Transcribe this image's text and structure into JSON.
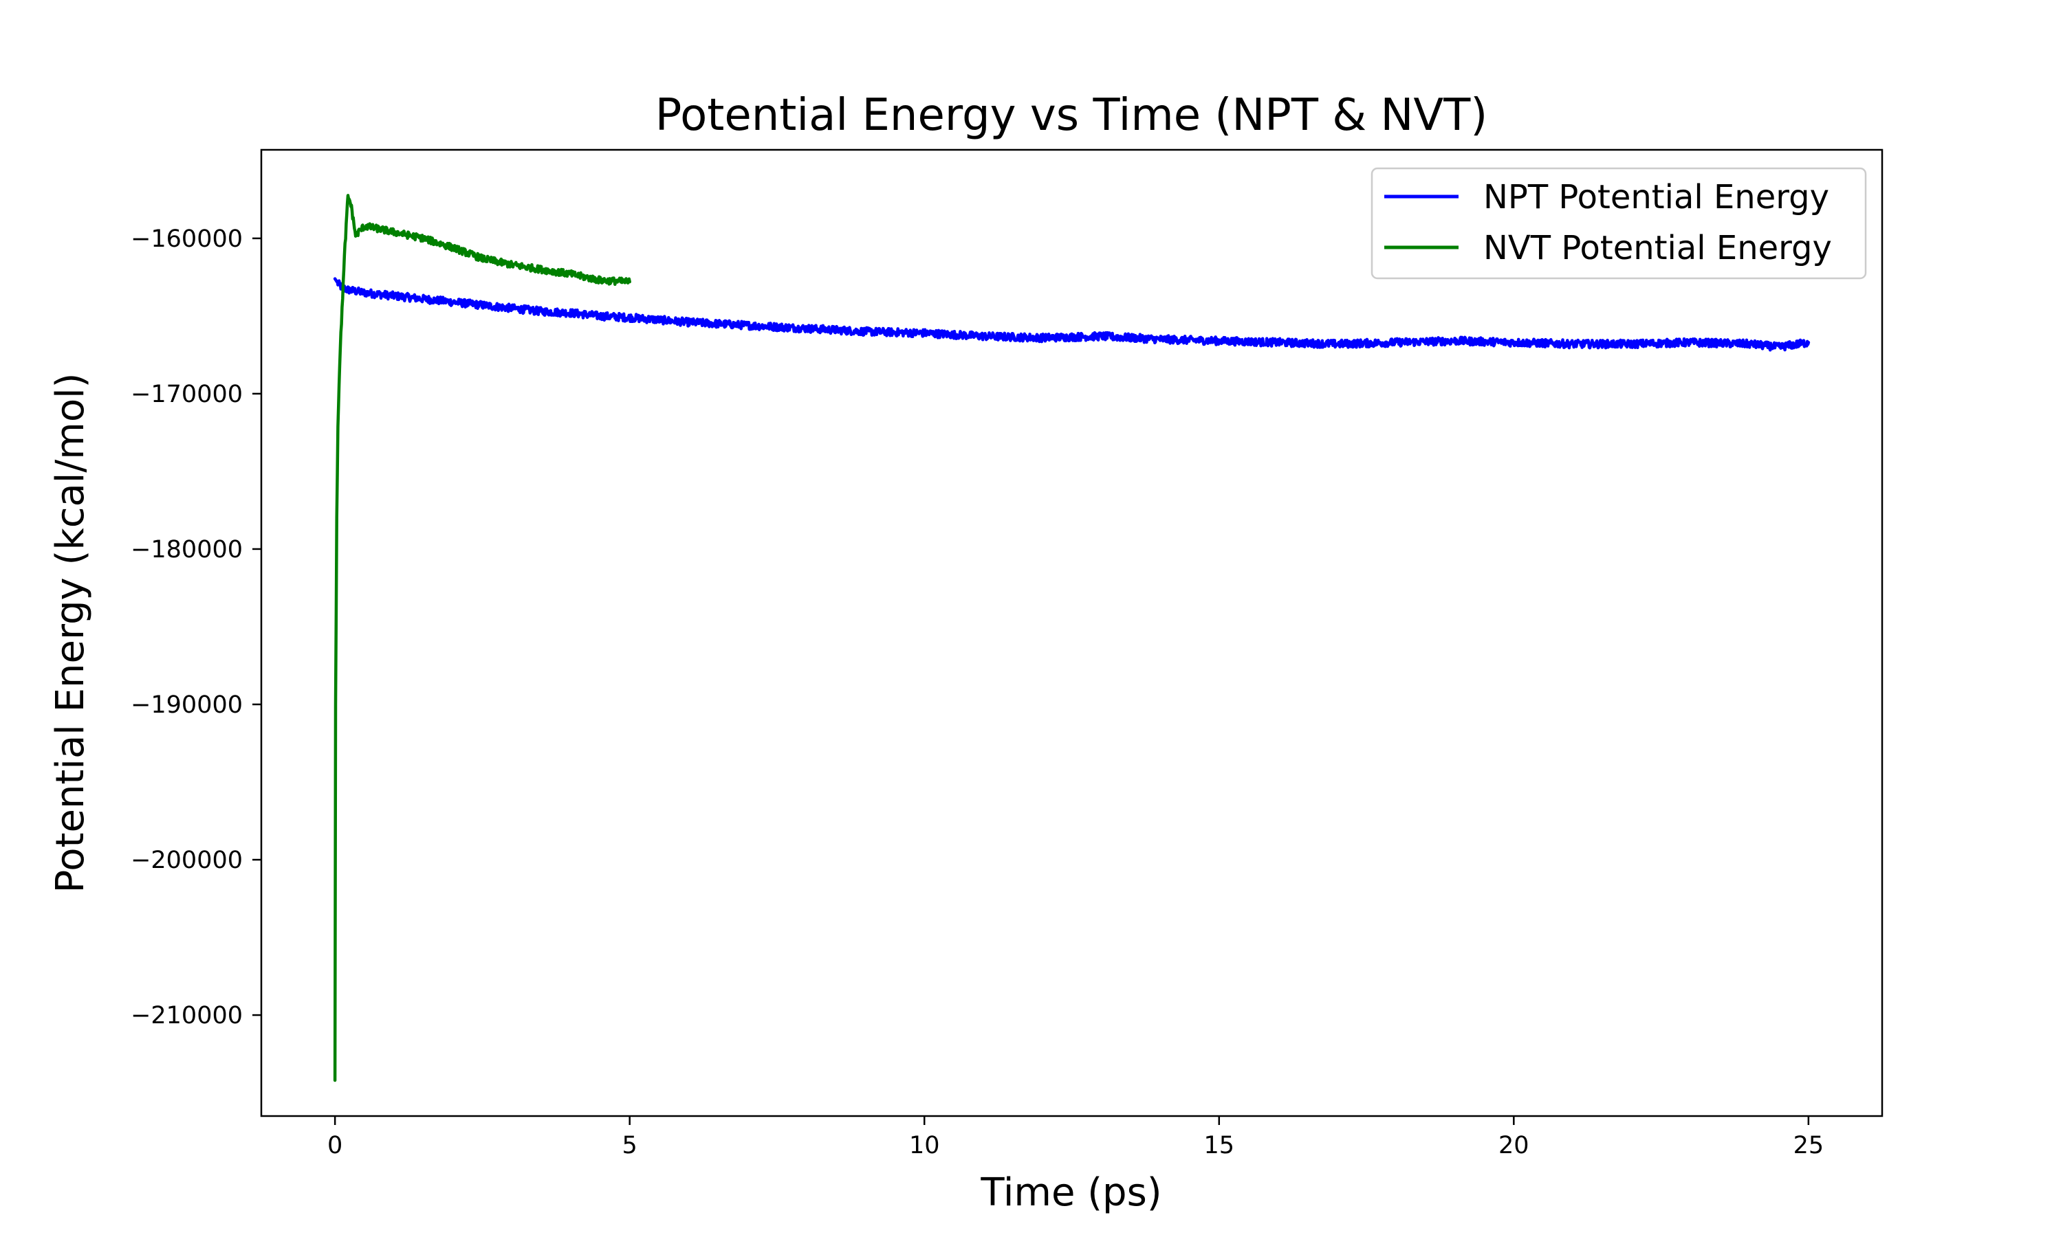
{
  "chart_data": {
    "type": "line",
    "title": "Potential Energy vs Time (NPT & NVT)",
    "xlabel": "Time (ps)",
    "ylabel": "Potential Energy (kcal/mol)",
    "xlim": [
      -1.25,
      26.25
    ],
    "ylim": [
      -216500,
      -154300
    ],
    "xticks": [
      0,
      5,
      10,
      15,
      20,
      25
    ],
    "xtick_labels": [
      "0",
      "5",
      "10",
      "15",
      "20",
      "25"
    ],
    "yticks": [
      -160000,
      -170000,
      -180000,
      -190000,
      -200000,
      -210000
    ],
    "ytick_labels": [
      "−160000",
      "−170000",
      "−180000",
      "−190000",
      "−200000",
      "−210000"
    ],
    "grid": false,
    "legend_position": "top-right",
    "series": [
      {
        "name": "NPT Potential Energy",
        "color": "#0000ff",
        "x": [
          0,
          0.05,
          0.1,
          0.2,
          0.5,
          1,
          1.5,
          2,
          2.5,
          3,
          3.5,
          4,
          4.5,
          5,
          6,
          7,
          8,
          9,
          10,
          11,
          12,
          13,
          14,
          15,
          16,
          17,
          18,
          19,
          20,
          21,
          22,
          23,
          24,
          24.5,
          25
        ],
        "y": [
          -162600,
          -162900,
          -163100,
          -163300,
          -163500,
          -163700,
          -163900,
          -164100,
          -164300,
          -164500,
          -164700,
          -164800,
          -165000,
          -165100,
          -165400,
          -165600,
          -165800,
          -166000,
          -166100,
          -166300,
          -166400,
          -166300,
          -166500,
          -166600,
          -166700,
          -166800,
          -166700,
          -166600,
          -166700,
          -166800,
          -166800,
          -166700,
          -166800,
          -167000,
          -166700
        ],
        "noise": 250
      },
      {
        "name": "NVT Potential Energy",
        "color": "#008000",
        "x": [
          0,
          0.01,
          0.03,
          0.05,
          0.08,
          0.12,
          0.17,
          0.22,
          0.27,
          0.35,
          0.5,
          0.75,
          1,
          1.5,
          2,
          2.5,
          3,
          3.5,
          4,
          4.5,
          5
        ],
        "y": [
          -214200,
          -190000,
          -178000,
          -172000,
          -168000,
          -164500,
          -160500,
          -157300,
          -157800,
          -159800,
          -159200,
          -159400,
          -159600,
          -160000,
          -160600,
          -161300,
          -161700,
          -162000,
          -162300,
          -162700,
          -162800
        ],
        "noise": 220
      }
    ]
  }
}
